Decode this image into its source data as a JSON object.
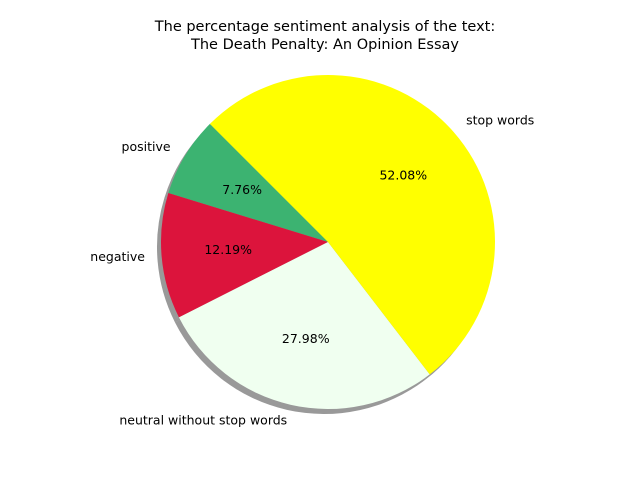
{
  "chart_data": {
    "type": "pie",
    "title": [
      "The percentage sentiment analysis of the text:",
      "The Death Penalty: An Opinion Essay"
    ],
    "start_angle_deg": 135,
    "direction": "counterclockwise",
    "shadow": true,
    "slices": [
      {
        "label": "positive",
        "value": 7.76,
        "pct_text": "7.76%",
        "color": "#3cb371"
      },
      {
        "label": "negative",
        "value": 12.19,
        "pct_text": "12.19%",
        "color": "#dc143c"
      },
      {
        "label": "neutral without stop words",
        "value": 27.98,
        "pct_text": "27.98%",
        "color": "#f0fff0"
      },
      {
        "label": "stop words",
        "value": 52.08,
        "pct_text": "52.08%",
        "color": "#ffff00"
      }
    ]
  }
}
